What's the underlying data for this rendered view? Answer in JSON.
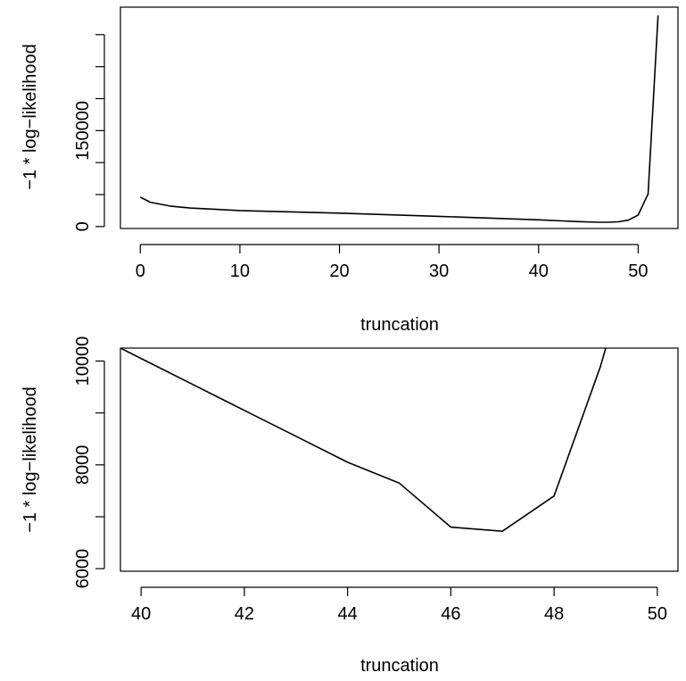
{
  "chart_data": [
    {
      "type": "line",
      "title": "",
      "xlabel": "truncation",
      "ylabel": "−1 * log−likelihood",
      "xlim": [
        -2,
        54
      ],
      "ylim": [
        -3000,
        343000
      ],
      "x_ticks": [
        0,
        10,
        20,
        30,
        40,
        50
      ],
      "x_tick_labels": [
        "0",
        "10",
        "20",
        "30",
        "40",
        "50"
      ],
      "y_ticks": [
        0,
        50000,
        100000,
        150000,
        200000,
        250000,
        300000
      ],
      "y_tick_labels": [
        "0",
        "",
        "",
        "150000",
        "",
        "",
        ""
      ],
      "grid": false,
      "series": [
        {
          "x": [
            0,
            1,
            3,
            5,
            10,
            20,
            30,
            40,
            44,
            46,
            47,
            48,
            49,
            50,
            51,
            52
          ],
          "y": [
            46000,
            38000,
            32000,
            29000,
            25000,
            21000,
            16000,
            10500,
            7700,
            6800,
            6700,
            7500,
            10000,
            18000,
            51000,
            330000
          ]
        }
      ]
    },
    {
      "type": "line",
      "title": "",
      "xlabel": "truncation",
      "ylabel": "−1 * log−likelihood",
      "xlim": [
        39.6,
        50.4
      ],
      "ylim": [
        5950,
        10250
      ],
      "x_ticks": [
        40,
        42,
        44,
        46,
        48,
        50
      ],
      "x_tick_labels": [
        "40",
        "42",
        "44",
        "46",
        "48",
        "50"
      ],
      "y_ticks": [
        6000,
        7000,
        8000,
        9000,
        10000
      ],
      "y_tick_labels": [
        "6000",
        "",
        "8000",
        "",
        "10000"
      ],
      "grid": false,
      "series": [
        {
          "x": [
            39.6,
            40,
            41,
            42,
            43,
            44,
            45,
            46,
            47,
            48,
            48.9,
            49,
            49.2
          ],
          "y": [
            10250,
            10050,
            9550,
            9050,
            8550,
            8050,
            7650,
            6800,
            6720,
            7400,
            9900,
            10250,
            11000
          ]
        }
      ]
    }
  ]
}
